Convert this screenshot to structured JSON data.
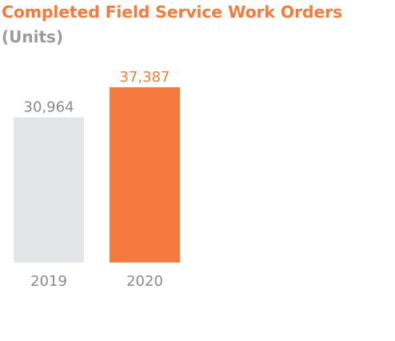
{
  "chart_data": {
    "type": "bar",
    "title": "Completed Field Service Work Orders",
    "subtitle": "(Units)",
    "categories": [
      "2019",
      "2020"
    ],
    "values": [
      30964,
      37387
    ],
    "value_labels": [
      "30,964",
      "37,387"
    ],
    "ylim": [
      0,
      37387
    ],
    "grid": false,
    "legend": "none",
    "colors": {
      "title": "#f47b3d",
      "subtitle": "#9b9b9b",
      "bars": [
        "#e4e5e7",
        "#f47b3d"
      ],
      "value_labels": [
        "#8a8a8a",
        "#f47b3d"
      ],
      "tick_labels": "#8a8a8a"
    }
  }
}
